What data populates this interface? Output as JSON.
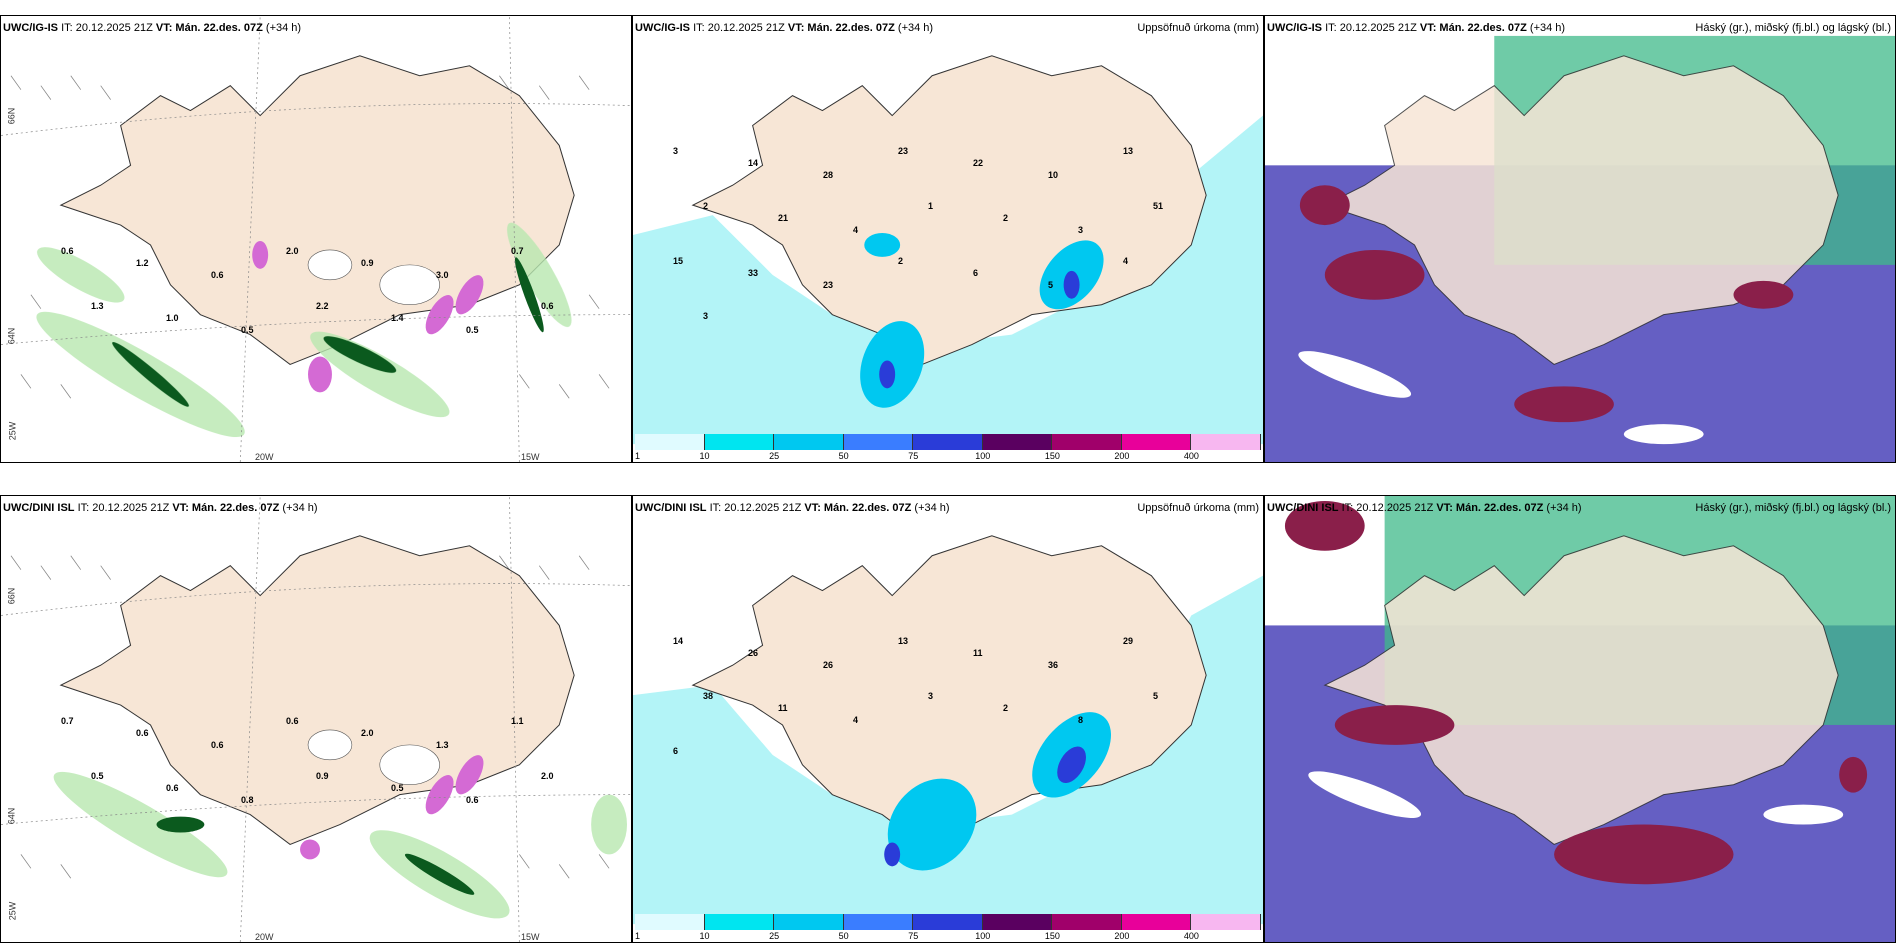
{
  "rows": [
    {
      "model": "UWC/IG-IS",
      "it_label": "IT: 20.12.2025 21Z",
      "vt_label": "VT: Mán. 22.des. 07Z",
      "lead": "(+34 h)"
    },
    {
      "model": "UWC/DINI ISL",
      "it_label": "IT: 20.12.2025 21Z",
      "vt_label": "VT: Mán. 22.des. 07Z",
      "lead": "(+34 h)"
    }
  ],
  "panels": {
    "precip_title": "Uppsöfnuð úrkoma (mm)",
    "cloud_title": "Háský (gr.), miðský (fj.bl.) og lágský (bl.)"
  },
  "coords": {
    "lat66": "66N",
    "lat64": "64N",
    "lon25": "25W",
    "lon20": "20W",
    "lon15": "15W"
  },
  "colorbar": {
    "labels": [
      "1",
      "10",
      "25",
      "50",
      "75",
      "100",
      "150",
      "200",
      "400"
    ],
    "colors": [
      "#e0fbff",
      "#00e5f0",
      "#00c8f0",
      "#3a7dff",
      "#2a3cd8",
      "#5a0060",
      "#a0006a",
      "#e8009a",
      "#f7b7f0"
    ]
  },
  "colors": {
    "land": "#f7e6d6",
    "sea_precip": "#b3f4f7",
    "cloud_blue": "#4a43b8",
    "cloud_green": "#3fb98a",
    "cloud_red": "#8a1f4a",
    "wind_green_light": "#b8e8b0",
    "wind_green_dark": "#0b5a1e",
    "snow_pink": "#d46ad4"
  },
  "labels_top_left": [
    "0.6",
    "1.2",
    "0.6",
    "2.0",
    "0.9",
    "3.0",
    "0.7",
    "1.3",
    "1.0",
    "0.5",
    "2.2",
    "1.4",
    "0.5",
    "0.6"
  ],
  "labels_top_mid": [
    "3",
    "14",
    "28",
    "23",
    "22",
    "10",
    "13",
    "2",
    "21",
    "4",
    "1",
    "2",
    "3",
    "51",
    "15",
    "33",
    "23",
    "2",
    "6",
    "5",
    "4",
    "3"
  ],
  "labels_bot_left": [
    "0.7",
    "0.6",
    "0.6",
    "0.6",
    "2.0",
    "1.3",
    "1.1",
    "0.5",
    "0.6",
    "0.8",
    "0.9",
    "0.5",
    "0.6",
    "2.0"
  ],
  "labels_bot_mid": [
    "14",
    "26",
    "26",
    "13",
    "11",
    "36",
    "29",
    "38",
    "11",
    "4",
    "3",
    "2",
    "8",
    "5",
    "6"
  ]
}
